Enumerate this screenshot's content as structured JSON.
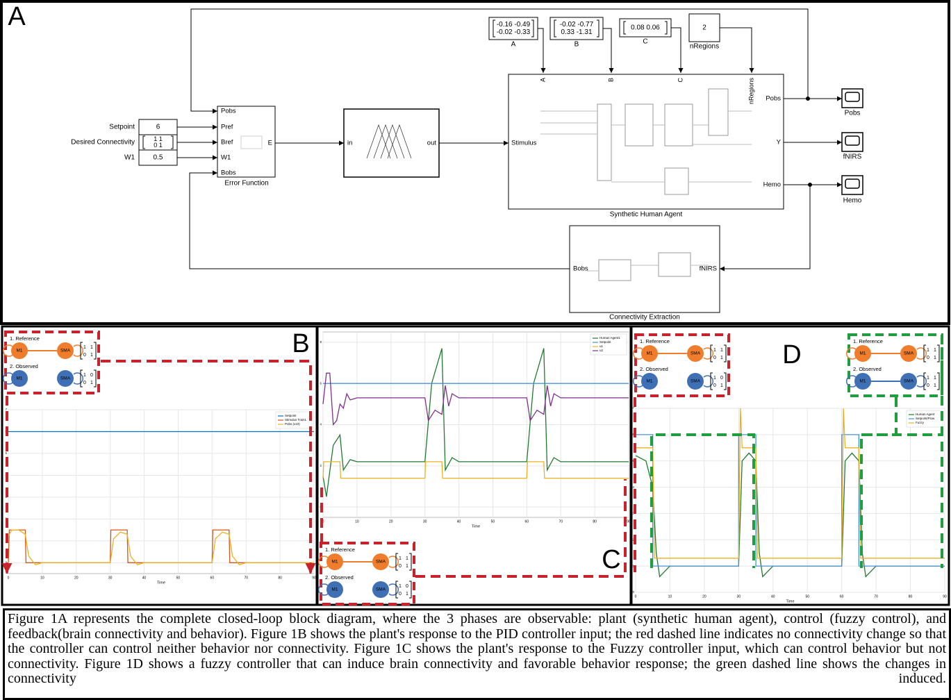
{
  "panel_a": {
    "label": "A",
    "constants": [
      {
        "name": "A",
        "rows": [
          "-0.16 -0.49",
          "-0.02 -0.33"
        ]
      },
      {
        "name": "B",
        "rows": [
          "-0.02 -0.77",
          "0.33 -1.31"
        ]
      },
      {
        "name": "C",
        "rows": [
          "0.08 0.06"
        ]
      },
      {
        "name": "nRegions",
        "rows": [
          "2"
        ]
      }
    ],
    "inputs": [
      {
        "name": "Setpoint",
        "rows": [
          "6"
        ]
      },
      {
        "name": "Desired Connectivity",
        "rows": [
          "1 1",
          "0 1"
        ]
      },
      {
        "name": "W1",
        "rows": [
          "0.5"
        ]
      }
    ],
    "error_function": {
      "title": "Error Function",
      "inputs": [
        "Pobs",
        "Pref",
        "Bref",
        "W1",
        "Bobs"
      ],
      "output": "E"
    },
    "fuzzy": {
      "input": "in",
      "output": "out"
    },
    "agent": {
      "title": "Synthetic Human Agent",
      "top_ports": [
        "A",
        "B",
        "C",
        "nRegions"
      ],
      "input": "Stimulus",
      "outputs": [
        "Pobs",
        "Y",
        "Hemo"
      ]
    },
    "scopes": [
      "Pobs",
      "fNIRS",
      "Hemo"
    ],
    "extraction": {
      "title": "Connectivity Extraction",
      "output": "Bobs",
      "input": "fNIRS"
    }
  },
  "panels": [
    {
      "label": "B",
      "insets": [
        {
          "reference": {
            "title": "1. Reference",
            "nodes": [
              "M1",
              "SMA"
            ],
            "matrix": [
              [
                1,
                1
              ],
              [
                0,
                1
              ]
            ]
          },
          "observed": {
            "title": "2. Observed",
            "nodes": [
              "M1",
              "SMA"
            ],
            "matrix": [
              [
                1,
                0
              ],
              [
                0,
                1
              ]
            ]
          }
        }
      ],
      "chart": {
        "type": "line",
        "xlabel": "Time",
        "xlim": [
          0,
          90
        ],
        "xticks": [
          0,
          10,
          20,
          30,
          40,
          50,
          60,
          70,
          80,
          90
        ],
        "ylim": [
          -0.5,
          7
        ],
        "yticks": [
          0,
          1,
          2,
          3,
          4,
          5,
          6,
          7
        ],
        "grid": true,
        "series": [
          {
            "name": "Setpoint",
            "color": "#0072bd",
            "x": [
              0,
              90
            ],
            "values": [
              6,
              6
            ]
          },
          {
            "name": "Stimulus Train1",
            "color": "#d95319",
            "x": [
              0,
              0.3,
              5,
              5.2,
              30,
              30.2,
              35,
              35.2,
              60,
              60.2,
              65,
              65.2,
              90
            ],
            "values": [
              0,
              1.5,
              1.5,
              0,
              0,
              1.5,
              1.5,
              0,
              0,
              1.5,
              1.5,
              0,
              0
            ]
          },
          {
            "name": "Pobs (x10)",
            "color": "#edb120",
            "x": [
              0,
              1,
              3,
              5,
              6,
              8,
              10,
              30,
              31,
              33,
              35,
              36,
              38,
              40,
              60,
              61,
              63,
              65,
              66,
              68,
              70,
              90
            ],
            "values": [
              1.2,
              1.5,
              1.5,
              1.3,
              0.3,
              -0.1,
              0,
              0,
              1.1,
              1.4,
              1.3,
              0.3,
              -0.1,
              0,
              0,
              1.1,
              1.4,
              1.3,
              0.3,
              -0.1,
              0,
              0
            ]
          }
        ]
      }
    },
    {
      "label": "C",
      "insets": [
        {
          "reference": {
            "title": "1. Reference",
            "nodes": [
              "M1",
              "SMA"
            ],
            "matrix": [
              [
                1,
                1
              ],
              [
                0,
                1
              ]
            ]
          },
          "observed": {
            "title": "2. Observed",
            "nodes": [
              "M1",
              "SMA"
            ],
            "matrix": [
              [
                1,
                0
              ],
              [
                0,
                1
              ]
            ]
          }
        }
      ],
      "chart": {
        "type": "line",
        "xlabel": "Time",
        "xlim": [
          0,
          90
        ],
        "xticks": [
          0,
          10,
          20,
          30,
          40,
          50,
          60,
          70,
          80,
          90
        ],
        "ylim": [
          -0.5,
          8.5
        ],
        "yticks": [
          0,
          2,
          4,
          6,
          8
        ],
        "grid": true,
        "series": [
          {
            "name": "Human Agent1",
            "color": "#1f7a2e",
            "x": [
              0,
              1,
              3,
              5,
              6,
              8,
              10,
              30,
              32,
              35,
              36,
              38,
              40,
              60,
              62,
              65,
              66,
              68,
              70,
              90
            ],
            "values": [
              1.5,
              0.5,
              3,
              3.5,
              1.8,
              2.3,
              2.2,
              2.2,
              6,
              7.7,
              1.8,
              2.4,
              2.2,
              2.2,
              6,
              7.7,
              1.8,
              2.4,
              2.2,
              2.2
            ]
          },
          {
            "name": "Setpoint",
            "color": "#4a90d9",
            "x": [
              0,
              90
            ],
            "values": [
              6,
              6
            ]
          },
          {
            "name": "u1",
            "color": "#edb120",
            "x": [
              0,
              0.2,
              5,
              5.2,
              30,
              30.2,
              35,
              35.2,
              60,
              60.2,
              65,
              65.2,
              90
            ],
            "values": [
              1.4,
              2.2,
              2.2,
              1.4,
              1.4,
              2.2,
              2.2,
              1.4,
              1.4,
              2.2,
              2.2,
              1.4,
              1.4
            ]
          },
          {
            "name": "u2",
            "color": "#7e2f8e",
            "x": [
              0,
              1,
              2,
              3,
              4,
              5,
              6,
              7,
              8,
              10,
              30,
              31,
              33,
              35,
              36,
              37,
              38,
              40,
              60,
              61,
              63,
              65,
              66,
              67,
              68,
              70,
              90
            ],
            "values": [
              5,
              6.5,
              6.5,
              4,
              4.2,
              5,
              4.8,
              5.5,
              5.2,
              5.3,
              5.3,
              4.2,
              4.7,
              4.5,
              5.9,
              4.9,
              5.5,
              5.3,
              5.3,
              4.2,
              4.7,
              4.5,
              5.9,
              4.9,
              5.5,
              5.3,
              5.3
            ]
          }
        ]
      }
    },
    {
      "label": "D",
      "insets": [
        {
          "reference": {
            "title": "1. Reference",
            "nodes": [
              "M1",
              "SMA"
            ],
            "matrix": [
              [
                1,
                1
              ],
              [
                0,
                1
              ]
            ]
          },
          "observed": {
            "title": "2. Observed",
            "nodes": [
              "M1",
              "SMA"
            ],
            "matrix": [
              [
                1,
                0
              ],
              [
                0,
                1
              ]
            ]
          }
        },
        {
          "reference": {
            "title": "1. Reference",
            "nodes": [
              "M1",
              "SMA"
            ],
            "matrix": [
              [
                1,
                1
              ],
              [
                0,
                1
              ]
            ]
          },
          "observed": {
            "title": "2. Observed",
            "nodes": [
              "M1",
              "SMA"
            ],
            "matrix": [
              [
                1,
                1
              ],
              [
                0,
                1
              ]
            ]
          }
        }
      ],
      "chart": {
        "type": "line",
        "xlabel": "Time",
        "xlim": [
          0,
          90
        ],
        "xticks": [
          0,
          10,
          20,
          30,
          40,
          50,
          60,
          70,
          80,
          90
        ],
        "ylim": [
          0,
          7
        ],
        "yticks": [
          0,
          1,
          2,
          3,
          4,
          5,
          6,
          7
        ],
        "grid": true,
        "series": [
          {
            "name": "Human Agent",
            "color": "#1f7a2e",
            "x": [
              0,
              3,
              5,
              6,
              7,
              10,
              30,
              31,
              33,
              35,
              36,
              37,
              40,
              60,
              61,
              63,
              65,
              66,
              67,
              70,
              90
            ],
            "values": [
              5.2,
              5,
              4,
              1.5,
              0.6,
              1,
              1,
              5,
              5.3,
              5,
              1.5,
              0.6,
              1,
              1,
              5,
              5.3,
              5,
              1.5,
              0.6,
              1,
              1
            ]
          },
          {
            "name": "Setpoint/Flow",
            "color": "#4a90d9",
            "x": [
              0,
              5,
              5,
              30,
              30,
              35,
              35,
              60,
              60,
              65,
              65,
              90
            ],
            "values": [
              6,
              6,
              1,
              1,
              6,
              6,
              1,
              1,
              6,
              6,
              1,
              1
            ]
          },
          {
            "name": "Fuzzy",
            "color": "#edb120",
            "x": [
              0,
              5,
              5.5,
              30,
              30.5,
              31,
              35,
              35.5,
              60,
              60.5,
              61,
              65,
              65.5,
              90
            ],
            "values": [
              5.5,
              5.5,
              1.3,
              1.3,
              7,
              5.5,
              5.5,
              1.3,
              1.3,
              7,
              5.5,
              5.5,
              1.3,
              1.3
            ]
          }
        ]
      }
    }
  ],
  "caption": "Figure 1A represents the complete closed-loop block diagram, where the 3 phases are observable: plant (synthetic human agent), control (fuzzy control), and feedback(brain connectivity and behavior). Figure 1B shows the plant's response to the PID controller input; the red dashed line indicates no connectivity change so that the controller can control neither behavior nor connectivity. Figure 1C shows the plant's response to the Fuzzy controller input, which can control behavior but not connectivity. Figure 1D shows a fuzzy controller that can induce brain connectivity and favorable behavior response; the green dashed line shows the changes in connectivity induced."
}
